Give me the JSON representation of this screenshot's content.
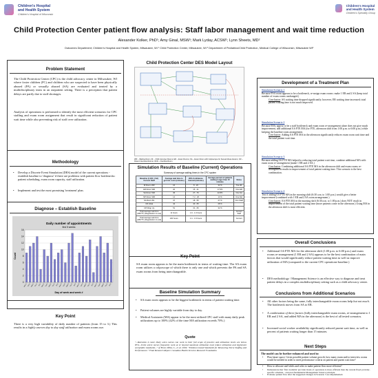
{
  "header": {
    "logo_left_line1": "Children's Hospital",
    "logo_left_line2": "and Health System",
    "logo_left_sub": "Children's Hospital of Wisconsin",
    "logo_right_line1": "Children's Hospital",
    "logo_right_line2": "and Health System",
    "logo_right_sub": "Children's Specialty Group",
    "title": "Child Protection Center patient flow analysis:  Staff labor management and wait time reduction",
    "authors": "Alexander Kolker, PhD¹; Amy Ginal, MSW¹; Mark Lyday, ACSW¹; Lynn Sheets, MD²",
    "affiliations": "Outcomes Department; Children's Hospital and Health System, Milwaukee, WI ¹ Child Protection Center, Milwaukee, WI ² Department of Pediatrics/Child Protection, Medical College of Wisconsin, Milwaukee WI²"
  },
  "problem": {
    "title": "Problem Statement",
    "p1": "The Child Protection Center (CPC) is the child advocacy center in Milwaukee, WI where foster children (FC) and children who are suspected to have been physically abused (PA) or sexually abused (SA) are evaluated and treated by a multidisciplinary team in an outpatient setting.  There is a perception that patient delays are partly due to staff shortages.",
    "p2": "Analysis of operations is performed to identify the most efficient scenarios for CPC staffing and exam room assignment that result in significant reduction of patient wait time while also preventing risk of staff over utilization."
  },
  "methodology": {
    "title": "Methodology",
    "b1": "Develop a Discrete Event Simulation (DES) model of the current operations - establish baseline to 'diagnose' if there are problems with patient flow bottlenecks: patient scheduling, exam room capacity, staff utilization.",
    "b2": "Implement and test the most promising 'treatment' plan."
  },
  "diagnose": {
    "title": "Diagnose – Establish Baseline"
  },
  "keypoint_left": {
    "title": "Key Point",
    "text_a": "There is a very high variability of daily number of patients (from 15 to 3.) This results in a ",
    "text_em": "highly uneven day to day staff utilization",
    "text_b": " and exam rooms use."
  },
  "model": {
    "title": "Child Protection Center DES Model Layout",
    "caption": "WR – Waiting Room; IR – Child interview Rooms; ER – Exam Rooms; SA – Exam Room with Colposcope for Sexual Abuse Exams; CR – Parent Interview Rooms; OFR – Overflow Room"
  },
  "sim_results": {
    "title": "Simulation Results of Baseline (Current) Operations",
    "subtitle": "Summary of average waiting times in the CPC system",
    "headers": [
      "Baseline (1 ER, 1 SA)  Current Staff",
      "Average wait time to get into room (minutes)",
      "95% Confidence Interval (minutes)",
      "Average percent of patients waiting longer than 15 minutes",
      "Notes"
    ],
    "rows": [
      [
        "IR Room WR",
        "16",
        "8 - 20",
        "32 %",
        "Two IR"
      ],
      [
        "ER Room WR",
        "20",
        "15 - 41",
        "17.5%",
        "One ER"
      ],
      [
        "SA Room WR",
        "36",
        "27 - 76",
        "22.8%",
        "One SA"
      ],
      [
        "NP Room WR",
        "14",
        "7.2 - 26",
        "13 %",
        "One MA"
      ],
      [
        "SA Room BL",
        "37",
        "18 - 55",
        "27 %",
        "One Staff"
      ],
      [
        "CR Initial",
        "42",
        "40 - 65",
        "28 %",
        ""
      ],
      [
        "CR Wrap Up",
        "51",
        "31 - 66",
        "32 %",
        ""
      ],
      [
        "Total average wait time (WR/TT) (Registration to exit)",
        "11 hours",
        "1.9 - 1.3 hours",
        "",
        "Current Staff"
      ],
      [
        "Total average wait time (WR/TT) (Registration to exit)",
        "100 hours",
        "1.4 - 1.9 hours",
        "",
        "Current"
      ]
    ]
  },
  "keypoint_mid": {
    "title": "Key Point",
    "text": "SA exam room appears to be the main bottleneck in terms of waiting time.  The SA exam room utilizes a colposcope of which there is only one and which prevents the PA and SA exam rooms from being interchangeable."
  },
  "baseline_summary": {
    "title": "Baseline Simulation Summary",
    "b1": "SA exam room appears to be the biggest bottleneck in terms of patient waiting time.",
    "b2": "Patient volumes are highly variable from day to day.",
    "b3": "Medical Assistants (MA) appear to be the most utilized CPC staff with many daily peak utilizations up to 100% (42% of the time MA utilization exceeds 70%.)"
  },
  "quote": {
    "title": "Quote",
    "text": "\"...Retention is more likely when nurses can work to their full scope of practice and utilization levels are below 85%...Units where nurses frequently work at or beyond maximum utilization must reduce utilization and implement acceptable standards...\" of Bruce-Wilke, L., et al. 2004: \"Evidence-based Standards for Measuring Nurse Staffing and Performance.\" Final Research Report. Canadian Health Services Research Foundation"
  },
  "treatment": {
    "title": "Development of a Treatment Plan",
    "s1_head": "Simulation Scenario 1",
    "s1_text": "Because FSA room appears to be a bottleneck, re-assign exam rooms: make 1 ER and 2 SA (keep total number of exam rooms unchanged.)",
    "s1_concl_label": "Conclusion",
    "s1_concl": ": SA waiting time dropped significantly; however, ER waiting time increased; total patient waiting time is not much improved.",
    "s2_head": "Simulation Scenario 2",
    "s2_text": "Because MAs appear to be a staff bottleneck and exam room re-arrangement alone does not give much improvement, add additional 0.6 FTE MA (for FTE, afternoon shift from 1:00 p.m. to 6:00 p.m.) while keeping the baseline room arrangement.",
    "s2_concl_label": "Conclusion",
    "s2_concl": ": Adding 0.6 FTE MA in the afternoon significantly reduces exam room wait time and the total patient wait time.",
    "s3_head": "Simulation Scenario 3",
    "s3_text": "Because adding 0.6 FTE MA helped to reducing total patient wait time, combine additional MA with exam room re-arrangement (make 1 ER and 2 SA.)",
    "s3_concl_label": "Conclusion",
    "s3_concl": ": Combining additional 0.6 FTE MA in the afternoon shift and exam rooms re-arrangement results in improvement of total patient waiting time. This scenario is the best combination.",
    "s4_head": "Simulation Scenario 4",
    "s4_text": "Test if adding 0.6 FTE MA in the morning shift (6:30 a.m. to 1:00 p.m.) would give a better improvement (combined with 1 ER and 2 SA room arrangement.)",
    "s4_concl_label": "Conclusion",
    "s4_concl": ": 0.6 FTE MA in the morning shift (6:30 a.m. to 1:00 p.m.) does NOT result in improvement of the total patient waiting time (more patients come in the afternoon.) Using MA in the afternoon shift is most efficient."
  },
  "overall": {
    "title": "Overall Conclusions",
    "b1": "Additional 0.6 FTE MA for the afternoon shift (1:00 p.m. to 6:00 p.m.) and exam rooms re-arrangement (1 ER and 2 SA) appears to be the best combination of main factors that would significantly reduce patient waiting time as well as improve utilization of MA (compared to the current CPC operations-baseline.)",
    "b2": "DES methodology / Management Science is an effective way to diagnose and treat patient delays in a complex multidisciplinary setting such as a child advocacy center."
  },
  "additional": {
    "title": "Conclusions from Additional Scenarios",
    "b1a": "All other factors being the same, fully interchangeable exam rooms help ",
    "b1em": "but not much",
    "b1b": ". The bottleneck moves from SA to ER.",
    "b2a": "A ",
    "b2em": "combination of three factors",
    "b2b": " (fully interchangeable exam rooms, re-arrangement to 1 ER and 2 SA, and added MA in the afternoon) is the best of all tested scenarios.",
    "b3": "Increased social worker availability significantly reduced parent wait time, as well as percent of patients waiting longer than 15 minutes."
  },
  "next": {
    "title": "Next Steps",
    "intro": "The model can be further enhanced and used to:",
    "b1": "Plan future space: Given possible patient volume growth, how many exam and/or interview rooms would be needed in order to meet performance criteria on patient and parent wait time?",
    "b2": "How to allocate staff shifts and roles to make patient flow more efficient?",
    "b3": "Demonstrate that 'first available' provider mode of operations is more efficient than the current fixed provider-specific schedule - a known fundamental Management Science principle.",
    "b4": "Evaluate patient flow after the suggested changes in Scenario 5 are implemented."
  },
  "chart_data": {
    "type": "bar",
    "title": "Daily number of appointments",
    "subtitle": "first 5 weeks",
    "xlabel": "Day of week and week #",
    "ylabel": "Count",
    "ylim": [
      0,
      16
    ],
    "yticks": [
      0,
      2,
      4,
      6,
      8,
      10,
      12,
      14,
      16
    ],
    "grid": true,
    "categories": [
      "Mon 1",
      "Tue 1",
      "Wed 1",
      "Thu 1",
      "Fri 1",
      "Mon 2",
      "Tue 2",
      "Wed 2",
      "Thu 2",
      "Fri 2",
      "Mon 3",
      "Tue 3",
      "Wed 3",
      "Thu 3",
      "Fri 3",
      "Mon 4",
      "Tue 4",
      "Wed 4",
      "Thu 4",
      "Fri 4",
      "Mon 5",
      "Tue 5",
      "Wed 5",
      "Thu 5",
      "Fri 5"
    ],
    "values": [
      9,
      11,
      12,
      14,
      4,
      10,
      8,
      12,
      7,
      9,
      10,
      6,
      12,
      15,
      5,
      9,
      11,
      8,
      13,
      3,
      11,
      14,
      9,
      12,
      7
    ]
  }
}
